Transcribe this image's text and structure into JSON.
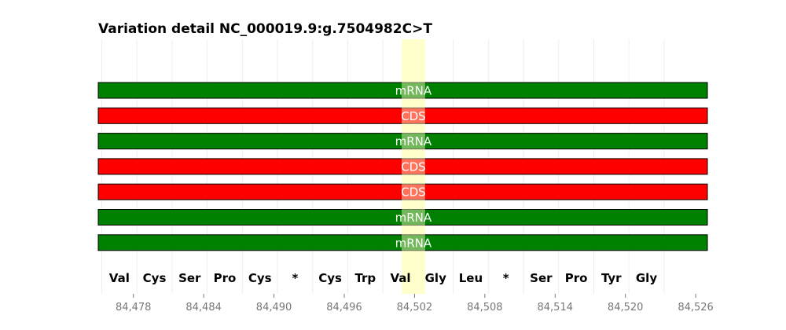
{
  "title": "Variation detail NC_000019.9:g.7504982C>T",
  "chart_data": {
    "type": "bar",
    "title": "Variation detail NC_000019.9:g.7504982C>T",
    "xlim": [
      84475,
      84527
    ],
    "highlight": {
      "start": 84500.9,
      "end": 84502.9,
      "color": "#ffffcc"
    },
    "gridlines_x": [
      84475.3,
      84478.3,
      84481.3,
      84484.3,
      84487.3,
      84490.3,
      84493.3,
      84496.3,
      84499.3,
      84502.3,
      84505.3,
      84508.3,
      84511.3,
      84514.3,
      84517.3,
      84520.3,
      84523.3
    ],
    "tracks": [
      {
        "label": "mRNA",
        "color": "#008000"
      },
      {
        "label": "CDS",
        "color": "#ff0000"
      },
      {
        "label": "mRNA",
        "color": "#008000"
      },
      {
        "label": "CDS",
        "color": "#ff0000"
      },
      {
        "label": "CDS",
        "color": "#ff0000"
      },
      {
        "label": "mRNA",
        "color": "#008000"
      },
      {
        "label": "mRNA",
        "color": "#008000"
      }
    ],
    "amino_acids": [
      {
        "label": "Val",
        "pos": 84476.8
      },
      {
        "label": "Cys",
        "pos": 84479.8
      },
      {
        "label": "Ser",
        "pos": 84482.8
      },
      {
        "label": "Pro",
        "pos": 84485.8
      },
      {
        "label": "Cys",
        "pos": 84488.8
      },
      {
        "label": "*",
        "pos": 84491.8
      },
      {
        "label": "Cys",
        "pos": 84494.8
      },
      {
        "label": "Trp",
        "pos": 84497.8
      },
      {
        "label": "Val",
        "pos": 84500.8
      },
      {
        "label": "Gly",
        "pos": 84503.8
      },
      {
        "label": "Leu",
        "pos": 84506.8
      },
      {
        "label": "*",
        "pos": 84509.8
      },
      {
        "label": "Ser",
        "pos": 84512.8
      },
      {
        "label": "Pro",
        "pos": 84515.8
      },
      {
        "label": "Tyr",
        "pos": 84518.8
      },
      {
        "label": "Gly",
        "pos": 84521.8
      }
    ],
    "x_ticks": [
      {
        "value": 84478,
        "label": "84,478"
      },
      {
        "value": 84484,
        "label": "84,484"
      },
      {
        "value": 84490,
        "label": "84,490"
      },
      {
        "value": 84496,
        "label": "84,496"
      },
      {
        "value": 84502,
        "label": "84,502"
      },
      {
        "value": 84508,
        "label": "84,508"
      },
      {
        "value": 84514,
        "label": "84,514"
      },
      {
        "value": 84520,
        "label": "84,520"
      },
      {
        "value": 84526,
        "label": "84,526"
      }
    ]
  }
}
